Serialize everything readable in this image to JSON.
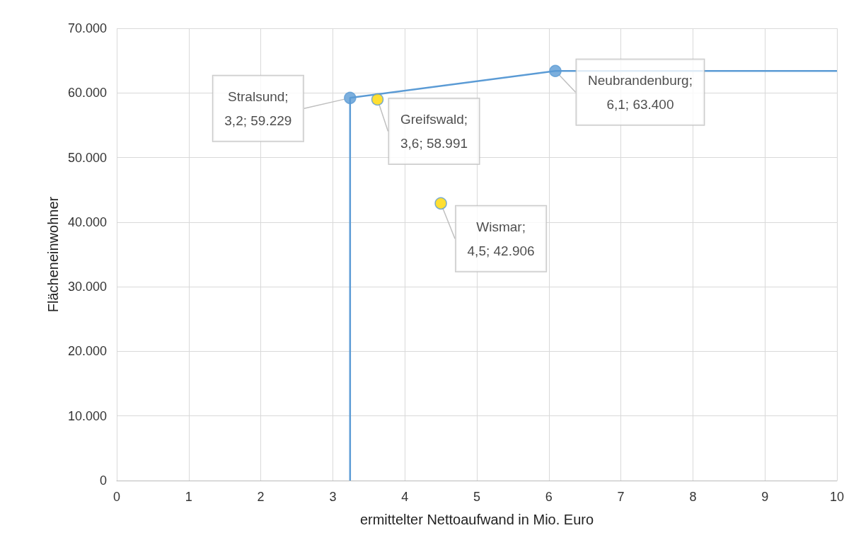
{
  "chart_data": {
    "type": "scatter",
    "xlabel": "ermittelter Nettoaufwand in Mio. Euro",
    "ylabel": "Flächeneinwohner",
    "xlim": [
      0,
      10
    ],
    "xticks": [
      0,
      1,
      2,
      3,
      4,
      5,
      6,
      7,
      8,
      9,
      10
    ],
    "ylim": [
      0,
      70000
    ],
    "yticks": [
      {
        "value": 0,
        "label": "0"
      },
      {
        "value": 10000,
        "label": "10.000"
      },
      {
        "value": 20000,
        "label": "20.000"
      },
      {
        "value": 30000,
        "label": "30.000"
      },
      {
        "value": 40000,
        "label": "40.000"
      },
      {
        "value": 50000,
        "label": "50.000"
      },
      {
        "value": 60000,
        "label": "60.000"
      },
      {
        "value": 70000,
        "label": "70.000"
      }
    ],
    "grid": true,
    "series": [
      {
        "type": "line",
        "color": "#5b9bd5",
        "marker": "none",
        "x": [
          3.24,
          3.24,
          6.09,
          10
        ],
        "values": [
          0,
          59229,
          63400,
          63400
        ]
      },
      {
        "color": "#5b9bd5",
        "marker": "circle",
        "x": [
          3.24,
          6.09
        ],
        "values": [
          59229,
          63400
        ],
        "value_labels": [
          "Stralsund;\n3,2; 59.229",
          "Neubrandenburg;\n6,1; 63.400"
        ]
      },
      {
        "color": "#ffd700",
        "marker": "circle",
        "x": [
          3.62,
          4.5
        ],
        "values": [
          58991,
          42906
        ],
        "value_labels": [
          "Greifswald;\n3,6; 58.991",
          "Wismar;\n4,5; 42.906"
        ]
      }
    ]
  }
}
